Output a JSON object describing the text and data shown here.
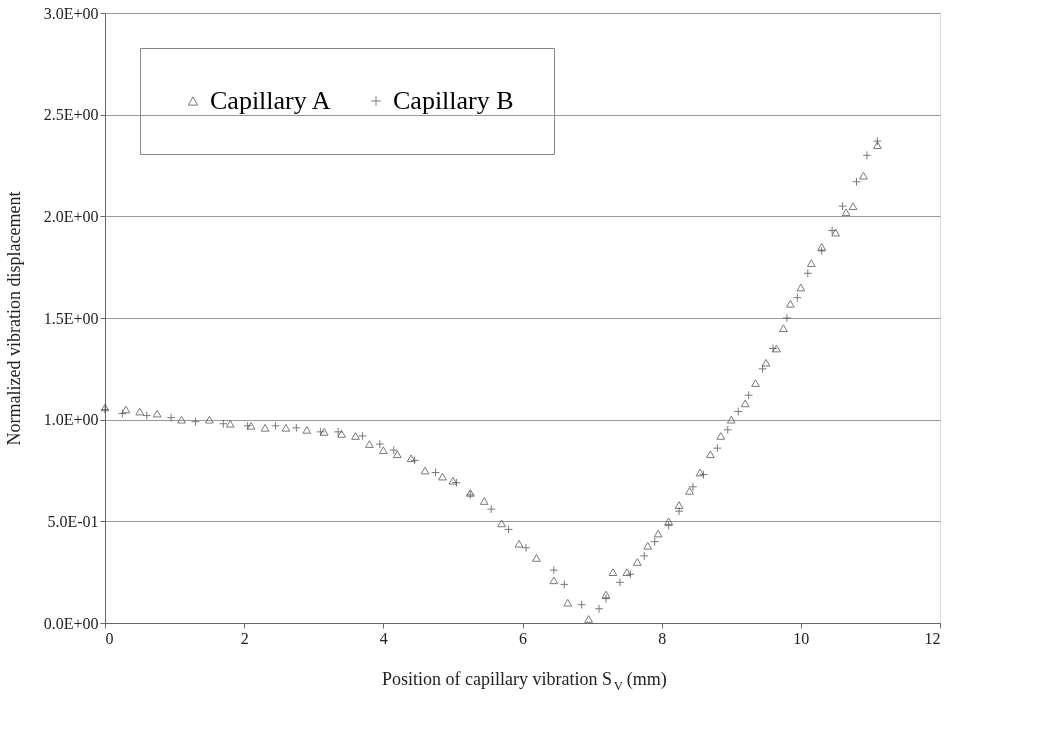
{
  "chart_data": {
    "type": "scatter",
    "xlabel": "Position of capillary vibration S$_{V}$ (mm)",
    "ylabel": "Normalized vibration displacement",
    "xlim": [
      0,
      12
    ],
    "xticks": [
      0,
      2,
      4,
      6,
      8,
      10,
      12
    ],
    "ylim": [
      0,
      3
    ],
    "yticks": [
      {
        "value": 0,
        "label": "0.0E+00"
      },
      {
        "value": 0.5,
        "label": "5.0E-01"
      },
      {
        "value": 1,
        "label": "1.0E+00"
      },
      {
        "value": 1.5,
        "label": "1.5E+00"
      },
      {
        "value": 2,
        "label": "2.0E+00"
      },
      {
        "value": 2.5,
        "label": "2.5E+00"
      },
      {
        "value": 3,
        "label": "3.0E+00"
      }
    ],
    "grid": "y",
    "legend": "top left",
    "series": [
      {
        "name": "Capillary A",
        "color": "#404040",
        "marker": "triangle",
        "x": [
          0,
          0.3,
          0.5,
          0.75,
          1.1,
          1.5,
          1.8,
          2.1,
          2.3,
          2.6,
          2.9,
          3.15,
          3.4,
          3.6,
          3.8,
          4.0,
          4.2,
          4.4,
          4.6,
          4.85,
          5.0,
          5.25,
          5.45,
          5.7,
          5.95,
          6.2,
          6.45,
          6.65,
          6.95,
          7.2,
          7.3,
          7.5,
          7.65,
          7.8,
          7.95,
          8.1,
          8.25,
          8.4,
          8.55,
          8.7,
          8.85,
          9.0,
          9.2,
          9.35,
          9.5,
          9.65,
          9.75,
          9.85,
          10.0,
          10.15,
          10.3,
          10.5,
          10.65,
          10.75,
          10.9,
          11.1
        ],
        "values": [
          1.06,
          1.05,
          1.04,
          1.03,
          1.0,
          1.0,
          0.98,
          0.97,
          0.96,
          0.96,
          0.95,
          0.94,
          0.93,
          0.92,
          0.88,
          0.85,
          0.83,
          0.81,
          0.75,
          0.72,
          0.7,
          0.64,
          0.6,
          0.49,
          0.39,
          0.32,
          0.21,
          0.1,
          0.02,
          0.14,
          0.25,
          0.25,
          0.3,
          0.38,
          0.44,
          0.5,
          0.58,
          0.65,
          0.74,
          0.83,
          0.92,
          1.0,
          1.08,
          1.18,
          1.28,
          1.35,
          1.45,
          1.57,
          1.65,
          1.77,
          1.85,
          1.92,
          2.02,
          2.05,
          2.2,
          2.35
        ]
      },
      {
        "name": "Capillary B",
        "color": "#404040",
        "marker": "cross",
        "x": [
          0,
          0.25,
          0.6,
          0.95,
          1.3,
          1.7,
          2.05,
          2.45,
          2.75,
          3.1,
          3.35,
          3.7,
          3.95,
          4.15,
          4.45,
          4.75,
          5.05,
          5.25,
          5.55,
          5.8,
          6.05,
          6.45,
          6.6,
          6.85,
          7.1,
          7.2,
          7.4,
          7.55,
          7.75,
          7.9,
          8.1,
          8.25,
          8.45,
          8.6,
          8.8,
          8.95,
          9.1,
          9.25,
          9.45,
          9.6,
          9.8,
          9.95,
          10.1,
          10.3,
          10.45,
          10.6,
          10.8,
          10.95,
          11.1
        ],
        "values": [
          1.05,
          1.03,
          1.02,
          1.01,
          0.99,
          0.98,
          0.97,
          0.97,
          0.96,
          0.94,
          0.94,
          0.92,
          0.88,
          0.85,
          0.8,
          0.74,
          0.69,
          0.63,
          0.56,
          0.46,
          0.37,
          0.26,
          0.19,
          0.09,
          0.07,
          0.12,
          0.2,
          0.24,
          0.33,
          0.4,
          0.48,
          0.55,
          0.67,
          0.73,
          0.86,
          0.95,
          1.04,
          1.12,
          1.25,
          1.35,
          1.5,
          1.6,
          1.72,
          1.83,
          1.93,
          2.05,
          2.17,
          2.3,
          2.37
        ]
      }
    ]
  }
}
